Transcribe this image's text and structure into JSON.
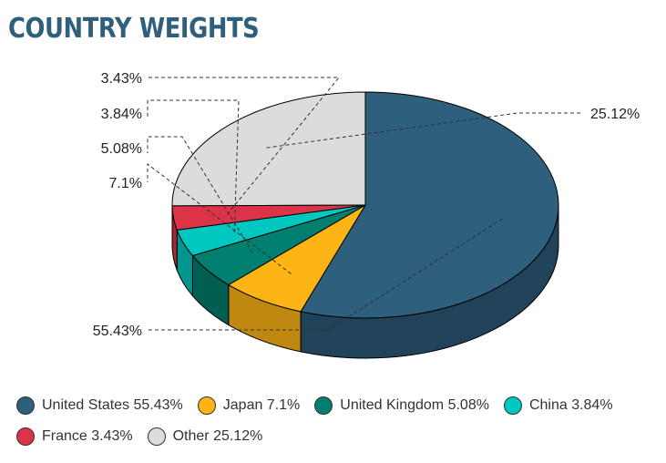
{
  "title": "COUNTRY WEIGHTS",
  "title_color": "#2e5f7c",
  "chart_data": {
    "type": "pie",
    "style": "3d",
    "slices": [
      {
        "label": "Other",
        "value": 25.12,
        "value_label": "25.12%",
        "legend": "Other 25.12%",
        "color": "#dcdcdc",
        "dark": "#a8a8a8"
      },
      {
        "label": "United States",
        "value": 55.43,
        "value_label": "55.43%",
        "legend": "United States 55.43%",
        "color": "#2e5f7c",
        "dark": "#21435a"
      },
      {
        "label": "Japan",
        "value": 7.1,
        "value_label": "7.1%",
        "legend": "Japan 7.1%",
        "color": "#fdb515",
        "dark": "#c08810"
      },
      {
        "label": "United Kingdom",
        "value": 5.08,
        "value_label": "5.08%",
        "legend": "United Kingdom 5.08%",
        "color": "#007f71",
        "dark": "#005e53"
      },
      {
        "label": "China",
        "value": 3.84,
        "value_label": "3.84%",
        "legend": "China 3.84%",
        "color": "#00c8c0",
        "dark": "#009690"
      },
      {
        "label": "France",
        "value": 3.43,
        "value_label": "3.43%",
        "legend": "France 3.43%",
        "color": "#dc3348",
        "dark": "#a52636"
      }
    ],
    "legend_order": [
      "United States",
      "Japan",
      "United Kingdom",
      "China",
      "France",
      "Other"
    ],
    "legend_position": "bottom"
  }
}
